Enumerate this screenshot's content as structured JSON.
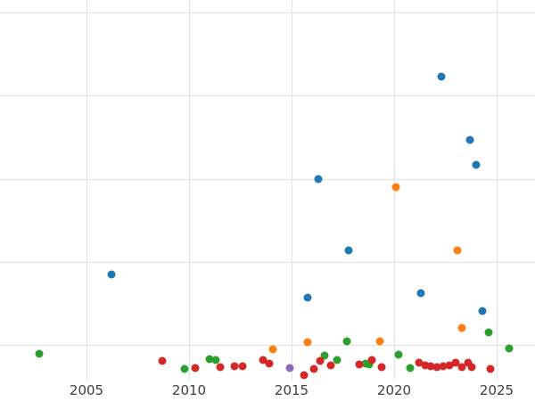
{
  "chart_data": {
    "type": "scatter",
    "title": "",
    "xlabel": "",
    "ylabel": "",
    "x_ticks": [
      "2005",
      "2010",
      "2015",
      "2020",
      "2025"
    ],
    "x_tick_years": [
      2005,
      2010,
      2015,
      2020,
      2025
    ],
    "x_range": [
      2000.8,
      2026.9
    ],
    "y_axis_note": "y axis is unlabeled in the image; point y values are given as fraction of plot height (0 = bottom of plot, 1 = top of plot); horizontal gridlines sit at fractions 0.094, 0.313, 0.530, 0.749, 0.968",
    "grid": true,
    "legend_position": "none",
    "marker": "circle",
    "series": [
      {
        "name": "blue",
        "color": "#1f77b4",
        "points": [
          [
            2006.2,
            0.279
          ],
          [
            2015.8,
            0.218
          ],
          [
            2016.3,
            0.529
          ],
          [
            2017.8,
            0.342
          ],
          [
            2021.3,
            0.229
          ],
          [
            2022.3,
            0.798
          ],
          [
            2023.7,
            0.632
          ],
          [
            2024.0,
            0.567
          ],
          [
            2024.3,
            0.183
          ]
        ]
      },
      {
        "name": "orange",
        "color": "#ff7f0e",
        "points": [
          [
            2014.1,
            0.082
          ],
          [
            2015.8,
            0.101
          ],
          [
            2019.3,
            0.103
          ],
          [
            2020.1,
            0.508
          ],
          [
            2023.1,
            0.342
          ],
          [
            2023.3,
            0.138
          ]
        ]
      },
      {
        "name": "green",
        "color": "#2ca02c",
        "points": [
          [
            2002.7,
            0.07
          ],
          [
            2009.8,
            0.03
          ],
          [
            2011.0,
            0.056
          ],
          [
            2011.3,
            0.054
          ],
          [
            2016.6,
            0.066
          ],
          [
            2017.2,
            0.054
          ],
          [
            2017.7,
            0.103
          ],
          [
            2018.6,
            0.044
          ],
          [
            2018.8,
            0.042
          ],
          [
            2020.2,
            0.068
          ],
          [
            2020.8,
            0.033
          ],
          [
            2024.6,
            0.126
          ],
          [
            2025.6,
            0.084
          ]
        ]
      },
      {
        "name": "red",
        "color": "#d62728",
        "points": [
          [
            2008.7,
            0.052
          ],
          [
            2010.3,
            0.033
          ],
          [
            2011.5,
            0.035
          ],
          [
            2012.2,
            0.037
          ],
          [
            2012.6,
            0.037
          ],
          [
            2013.6,
            0.054
          ],
          [
            2013.9,
            0.044
          ],
          [
            2015.6,
            0.014
          ],
          [
            2016.1,
            0.03
          ],
          [
            2016.4,
            0.052
          ],
          [
            2016.9,
            0.04
          ],
          [
            2018.3,
            0.042
          ],
          [
            2018.9,
            0.054
          ],
          [
            2019.4,
            0.035
          ],
          [
            2021.2,
            0.047
          ],
          [
            2021.5,
            0.04
          ],
          [
            2021.8,
            0.037
          ],
          [
            2022.1,
            0.035
          ],
          [
            2022.4,
            0.037
          ],
          [
            2022.7,
            0.04
          ],
          [
            2023.0,
            0.047
          ],
          [
            2023.3,
            0.035
          ],
          [
            2023.6,
            0.047
          ],
          [
            2023.8,
            0.035
          ],
          [
            2024.7,
            0.03
          ]
        ]
      },
      {
        "name": "purple",
        "color": "#9467bd",
        "points": [
          [
            2014.9,
            0.033
          ]
        ]
      }
    ]
  }
}
